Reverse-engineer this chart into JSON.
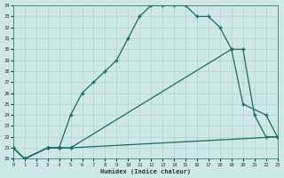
{
  "xlabel": "Humidex (Indice chaleur)",
  "bg_color": "#cde8e5",
  "grid_color": "#aed4d0",
  "line_color": "#1a6b6a",
  "xlim": [
    0,
    23
  ],
  "ylim": [
    20,
    34
  ],
  "xticks": [
    0,
    1,
    2,
    3,
    4,
    5,
    6,
    7,
    8,
    9,
    10,
    11,
    12,
    13,
    14,
    15,
    16,
    17,
    18,
    19,
    20,
    21,
    22,
    23
  ],
  "yticks": [
    20,
    21,
    22,
    23,
    24,
    25,
    26,
    27,
    28,
    29,
    30,
    31,
    32,
    33,
    34
  ],
  "line1_x": [
    0,
    1,
    3,
    4,
    5,
    6,
    7,
    8,
    9,
    10,
    11,
    12,
    13,
    14,
    15,
    16,
    17,
    18,
    19,
    20,
    21,
    22,
    23
  ],
  "line1_y": [
    21,
    20,
    21,
    21,
    24,
    26,
    27,
    28,
    29,
    31,
    33,
    34,
    34,
    34,
    34,
    33,
    33,
    32,
    30,
    30,
    24,
    22,
    22
  ],
  "line2_x": [
    0,
    1,
    3,
    4,
    5,
    19,
    20,
    22,
    23
  ],
  "line2_y": [
    21,
    20,
    21,
    21,
    21,
    30,
    25,
    24,
    22
  ],
  "line3_x": [
    0,
    1,
    3,
    4,
    5,
    23
  ],
  "line3_y": [
    21,
    20,
    21,
    21,
    21,
    22
  ]
}
